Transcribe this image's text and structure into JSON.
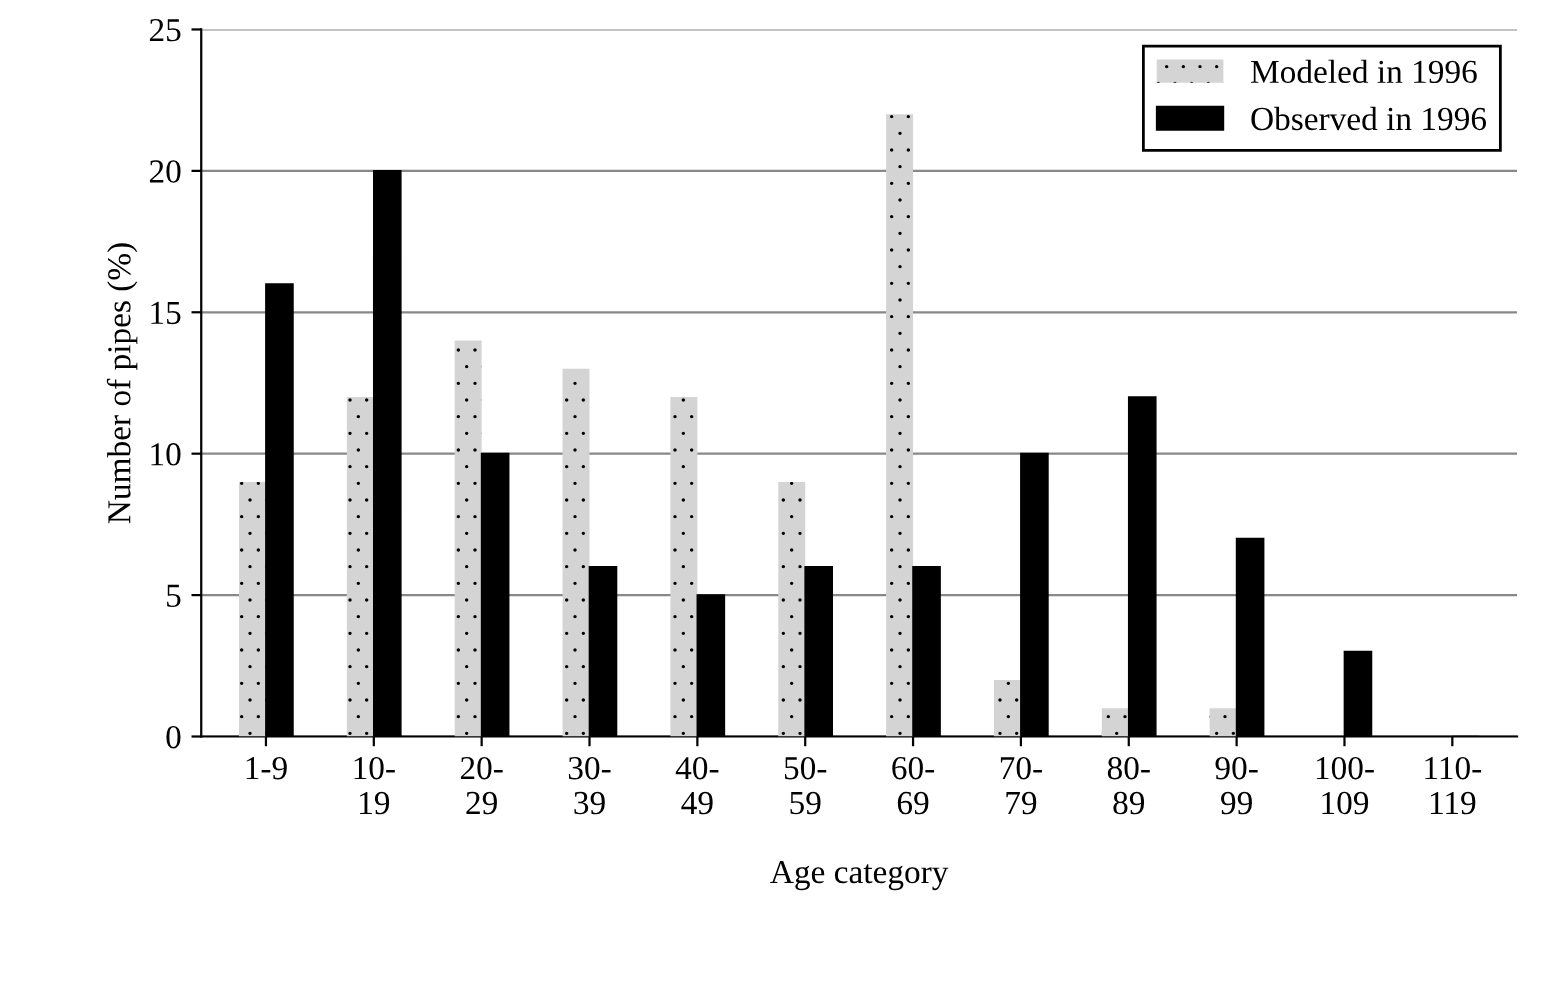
{
  "chart_data": {
    "type": "bar",
    "xlabel": "Age category",
    "ylabel": "Number of pipes (%)",
    "categories": [
      "1-9",
      "10-\n19",
      "20-\n29",
      "30-\n39",
      "40-\n49",
      "50-\n59",
      "60-\n69",
      "70-\n79",
      "80-\n89",
      "90-\n99",
      "100-\n109",
      "110-\n119"
    ],
    "series": [
      {
        "name": "Modeled in 1996",
        "color": "#d4d4d4",
        "values": [
          9,
          12,
          14,
          13,
          12,
          9,
          22,
          2,
          1,
          1,
          0,
          0
        ]
      },
      {
        "name": "Observed in 1996",
        "color": "#000000",
        "values": [
          16,
          20,
          10,
          6,
          5,
          6,
          6,
          10,
          12,
          7,
          3,
          0
        ]
      }
    ],
    "ylim": [
      0,
      25
    ],
    "yticks": [
      0,
      5,
      10,
      15,
      20,
      25
    ],
    "grid": "y",
    "legend": "top right"
  }
}
